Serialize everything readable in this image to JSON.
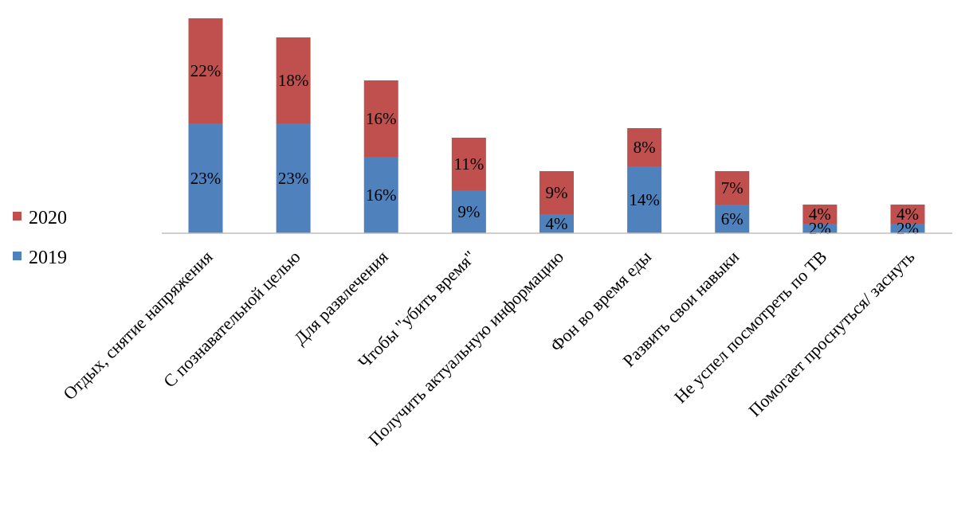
{
  "chart_data": {
    "type": "bar",
    "stacked": true,
    "categories": [
      "Отдых, снятие напряжения",
      "С познавательной целью",
      "Для развлечения",
      "Чтобы \"убить время\"",
      "Получить актуальную  информацию",
      "Фон во время еды",
      "Развить свои навыки",
      "Не успел посмотреть по ТВ",
      "Помогает проснуться/ заснуть"
    ],
    "series": [
      {
        "name": "2019",
        "color": "#4f81bd",
        "values": [
          23,
          23,
          16,
          9,
          4,
          14,
          6,
          2,
          2
        ],
        "labels": [
          "23%",
          "23%",
          "16%",
          "9%",
          "4%",
          "14%",
          "6%",
          "2%",
          "2%"
        ]
      },
      {
        "name": "2020",
        "color": "#c0504d",
        "values": [
          22,
          18,
          16,
          11,
          9,
          8,
          7,
          4,
          4
        ],
        "labels": [
          "22%",
          "18%",
          "16%",
          "11%",
          "9%",
          "8%",
          "7%",
          "4%",
          "4%"
        ]
      }
    ],
    "legend": {
      "position": "left",
      "items": [
        "2020",
        "2019"
      ]
    },
    "grid": false,
    "ylim": [
      0,
      45
    ]
  }
}
